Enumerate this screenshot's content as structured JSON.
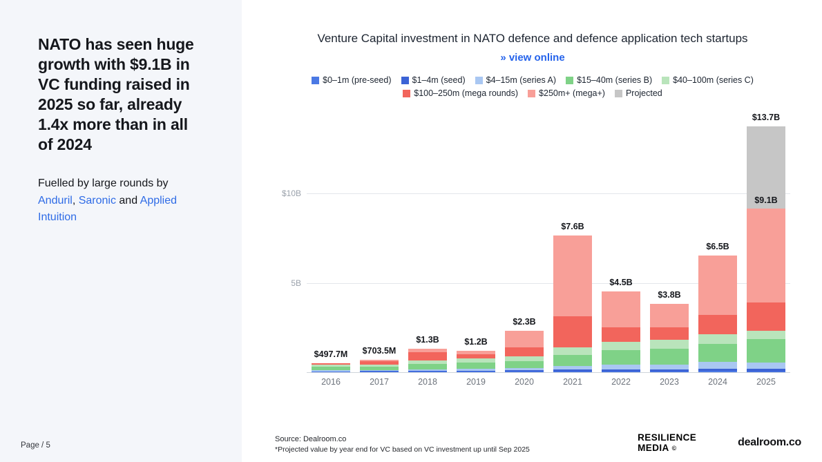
{
  "sidebar": {
    "headline": "NATO has seen huge growth with $9.1B in VC funding raised in 2025 so far, already 1.4x more than in all of 2024",
    "body_prefix": "Fuelled by large rounds by ",
    "links": [
      "Anduril",
      "Saronic",
      "Applied Intuition"
    ],
    "sep1": ", ",
    "sep2": " and ",
    "page_label": "Page / 5"
  },
  "header": {
    "title": "Venture Capital investment in NATO defence and defence application tech startups",
    "view_online": "» view online"
  },
  "chart_data": {
    "type": "bar",
    "stacked": true,
    "title": "Venture Capital investment in NATO defence and defence application tech startups",
    "unit": "USD billions",
    "categories": [
      "2016",
      "2017",
      "2018",
      "2019",
      "2020",
      "2021",
      "2022",
      "2023",
      "2024",
      "2025"
    ],
    "totals_labels": [
      "$497.7M",
      "$703.5M",
      "$1.3B",
      "$1.2B",
      "$2.3B",
      "$7.6B",
      "$4.5B",
      "$3.8B",
      "$6.5B",
      "$13.7B"
    ],
    "series": [
      {
        "name": "$0–1m (pre-seed)",
        "color": "#4b79e4",
        "values": [
          0.02,
          0.02,
          0.03,
          0.03,
          0.04,
          0.05,
          0.05,
          0.05,
          0.06,
          0.05
        ]
      },
      {
        "name": "$1–4m (seed)",
        "color": "#3c63d6",
        "values": [
          0.03,
          0.04,
          0.05,
          0.06,
          0.07,
          0.1,
          0.12,
          0.12,
          0.15,
          0.15
        ]
      },
      {
        "name": "$4–15m (series A)",
        "color": "#a9c7f2",
        "values": [
          0.05,
          0.05,
          0.08,
          0.1,
          0.12,
          0.2,
          0.25,
          0.25,
          0.35,
          0.35
        ]
      },
      {
        "name": "$15–40m (series B)",
        "color": "#7fd287",
        "values": [
          0.2,
          0.2,
          0.3,
          0.35,
          0.4,
          0.6,
          0.8,
          0.9,
          1.0,
          1.3
        ]
      },
      {
        "name": "$40–100m (series C)",
        "color": "#b9e4bb",
        "values": [
          0.12,
          0.12,
          0.2,
          0.22,
          0.27,
          0.45,
          0.48,
          0.48,
          0.54,
          0.45
        ]
      },
      {
        "name": "$100–250m (mega rounds)",
        "color": "#f2655c",
        "values": [
          0.08,
          0.18,
          0.44,
          0.24,
          0.5,
          1.7,
          0.8,
          0.7,
          1.1,
          1.6
        ]
      },
      {
        "name": "$250m+ (mega+)",
        "color": "#f89f98",
        "values": [
          0.0,
          0.09,
          0.2,
          0.2,
          0.9,
          4.5,
          2.0,
          1.3,
          3.3,
          5.2
        ]
      },
      {
        "name": "Projected",
        "color": "#c6c6c6",
        "values": [
          0,
          0,
          0,
          0,
          0,
          0,
          0,
          0,
          0,
          4.6
        ]
      }
    ],
    "actual_label": {
      "category": "2025",
      "label": "$9.1B",
      "exclude_series": "Projected"
    },
    "y_ticks": [
      {
        "value": 5,
        "label": "5B"
      },
      {
        "value": 10,
        "label": "$10B"
      }
    ],
    "ylim": [
      0,
      14.5
    ],
    "legend_position": "top",
    "grid": true
  },
  "footer": {
    "source": "Source:  Dealroom.co",
    "note": "*Projected value by year end for VC based on VC investment up until Sep 2025",
    "brand1_line1": "RESILIENCE",
    "brand1_line2": "MEDIA",
    "brand1_mark": "©",
    "brand2": "dealroom.co"
  }
}
